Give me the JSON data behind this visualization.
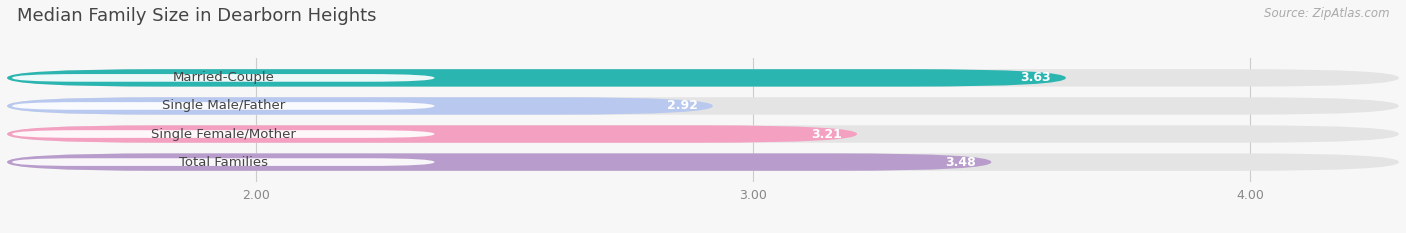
{
  "title": "Median Family Size in Dearborn Heights",
  "source": "Source: ZipAtlas.com",
  "categories": [
    "Married-Couple",
    "Single Male/Father",
    "Single Female/Mother",
    "Total Families"
  ],
  "values": [
    3.63,
    2.92,
    3.21,
    3.48
  ],
  "bar_colors": [
    "#2ab5b0",
    "#b8c8ee",
    "#f4a0c0",
    "#b89ccc"
  ],
  "bar_track_color": "#e4e4e4",
  "xmin": 1.5,
  "xmax": 4.3,
  "xlim_display": [
    1.5,
    4.3
  ],
  "xticks": [
    2.0,
    3.0,
    4.0
  ],
  "background_color": "#f7f7f7",
  "bar_height": 0.62,
  "label_fontsize": 9.5,
  "value_fontsize": 9,
  "title_fontsize": 13,
  "source_fontsize": 8.5
}
